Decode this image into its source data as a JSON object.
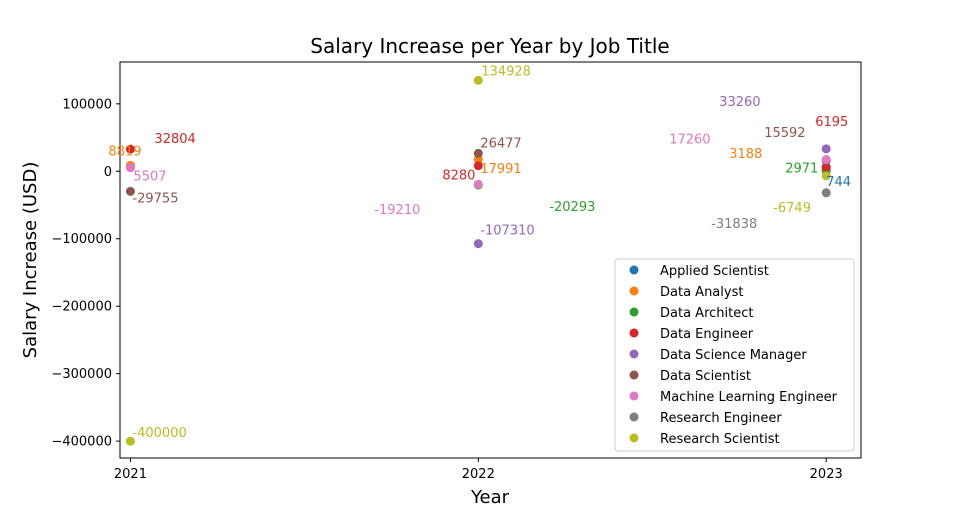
{
  "chart_data": {
    "type": "scatter",
    "title": "Salary Increase per Year by Job Title",
    "xlabel": "Year",
    "ylabel": "Salary Increase (USD)",
    "xlim": [
      2020.97,
      2023.1
    ],
    "ylim": [
      -425000,
      162000
    ],
    "xticks": [
      2021,
      2022,
      2023
    ],
    "xtick_labels": [
      "2021",
      "2022",
      "2023"
    ],
    "yticks": [
      100000,
      0,
      -100000,
      -200000,
      -300000,
      -400000
    ],
    "ytick_labels": [
      "100000",
      "0",
      "−100000",
      "−200000",
      "−300000",
      "−400000"
    ],
    "grid": false,
    "legend_position": "lower right",
    "series": [
      {
        "name": "Applied Scientist",
        "color": "#1f77b4",
        "points": [
          {
            "x": 2023,
            "y": 744,
            "label": "744"
          }
        ]
      },
      {
        "name": "Data Analyst",
        "color": "#ff7f0e",
        "points": [
          {
            "x": 2021,
            "y": 8819,
            "label": "8819"
          },
          {
            "x": 2022,
            "y": 17991,
            "label": "17991"
          },
          {
            "x": 2023,
            "y": 3188,
            "label": "3188"
          }
        ]
      },
      {
        "name": "Data Architect",
        "color": "#2ca02c",
        "points": [
          {
            "x": 2022,
            "y": -20293,
            "label": "-20293"
          },
          {
            "x": 2023,
            "y": 2971,
            "label": "2971"
          }
        ]
      },
      {
        "name": "Data Engineer",
        "color": "#d62728",
        "points": [
          {
            "x": 2021,
            "y": 32804,
            "label": "32804"
          },
          {
            "x": 2022,
            "y": 8280,
            "label": "8280"
          },
          {
            "x": 2023,
            "y": 6195,
            "label": "6195"
          }
        ]
      },
      {
        "name": "Data Science Manager",
        "color": "#9467bd",
        "points": [
          {
            "x": 2022,
            "y": -107310,
            "label": "-107310"
          },
          {
            "x": 2023,
            "y": 33260,
            "label": "33260"
          }
        ]
      },
      {
        "name": "Data Scientist",
        "color": "#8c564b",
        "points": [
          {
            "x": 2021,
            "y": -29755,
            "label": "-29755"
          },
          {
            "x": 2022,
            "y": 26477,
            "label": "26477"
          },
          {
            "x": 2023,
            "y": 15592,
            "label": "15592"
          }
        ]
      },
      {
        "name": "Machine Learning Engineer",
        "color": "#e377c2",
        "points": [
          {
            "x": 2021,
            "y": 5507,
            "label": "5507"
          },
          {
            "x": 2022,
            "y": -19210,
            "label": "-19210"
          },
          {
            "x": 2023,
            "y": 17260,
            "label": "17260"
          }
        ]
      },
      {
        "name": "Research Engineer",
        "color": "#7f7f7f",
        "points": [
          {
            "x": 2023,
            "y": -31838,
            "label": "-31838"
          }
        ]
      },
      {
        "name": "Research Scientist",
        "color": "#bcbd22",
        "points": [
          {
            "x": 2021,
            "y": -400000,
            "label": "-400000"
          },
          {
            "x": 2022,
            "y": 134928,
            "label": "134928"
          },
          {
            "x": 2023,
            "y": -6749,
            "label": "-6749"
          }
        ]
      }
    ]
  }
}
